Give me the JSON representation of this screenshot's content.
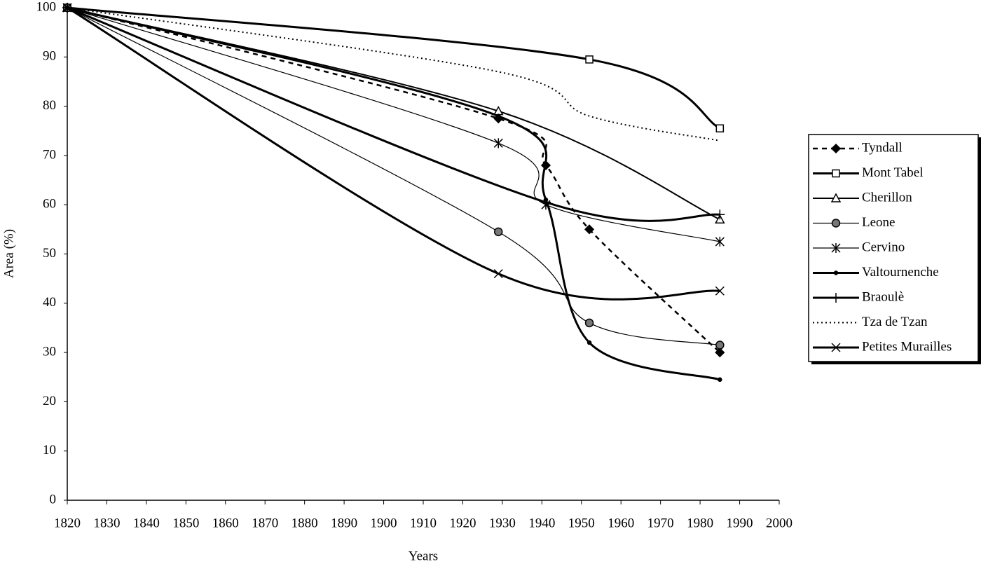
{
  "chart_data": {
    "type": "line",
    "x_label": "Years",
    "y_label": "Area (%)",
    "xlim": [
      1820,
      2000
    ],
    "xticks": [
      1820,
      1830,
      1840,
      1850,
      1860,
      1870,
      1880,
      1890,
      1900,
      1910,
      1920,
      1930,
      1940,
      1950,
      1960,
      1970,
      1980,
      1990,
      2000
    ],
    "ylim": [
      0,
      100
    ],
    "yticks": [
      0,
      10,
      20,
      30,
      40,
      50,
      60,
      70,
      80,
      90,
      100
    ],
    "legend": "right",
    "series": [
      {
        "name": "Tyndall",
        "color": "#000000",
        "style": "dashed",
        "marker": "diamond",
        "x": [
          1820,
          1929,
          1941,
          1952,
          1985
        ],
        "values": [
          100,
          77.5,
          68,
          55,
          30
        ]
      },
      {
        "name": "Mont Tabel",
        "color": "#000000",
        "style": "bold",
        "marker": "square",
        "x": [
          1820,
          1952,
          1985
        ],
        "values": [
          100,
          89.5,
          75.5
        ]
      },
      {
        "name": "Cherillon",
        "color": "#000000",
        "style": "normal",
        "marker": "triangle",
        "x": [
          1820,
          1929,
          1985
        ],
        "values": [
          100,
          79,
          57
        ]
      },
      {
        "name": "Leone",
        "color": "#000000",
        "style": "thin",
        "marker": "circle",
        "x": [
          1820,
          1929,
          1952,
          1985
        ],
        "values": [
          100,
          54.5,
          36,
          31.5
        ]
      },
      {
        "name": "Cervino",
        "color": "#000000",
        "style": "thin",
        "marker": "asterisk",
        "x": [
          1820,
          1929,
          1941,
          1985
        ],
        "values": [
          100,
          72.5,
          60,
          52.5
        ]
      },
      {
        "name": "Valtournenche",
        "color": "#000000",
        "style": "bold",
        "marker": "dot",
        "x": [
          1820,
          1929,
          1941,
          1952,
          1985
        ],
        "values": [
          100,
          78,
          61,
          32,
          24.5
        ]
      },
      {
        "name": "Braoulè",
        "color": "#000000",
        "style": "bold",
        "marker": "plus",
        "x": [
          1820,
          1941,
          1985
        ],
        "values": [
          100,
          60.5,
          58
        ]
      },
      {
        "name": "Tza de Tzan",
        "color": "#000000",
        "style": "dotted",
        "marker": "none",
        "x": [
          1820,
          1929,
          1952,
          1985
        ],
        "values": [
          100,
          87,
          78,
          73
        ]
      },
      {
        "name": "Petites Murailles",
        "color": "#000000",
        "style": "bold",
        "marker": "cross",
        "x": [
          1820,
          1929,
          1985
        ],
        "values": [
          100,
          46,
          42.5
        ]
      }
    ]
  }
}
